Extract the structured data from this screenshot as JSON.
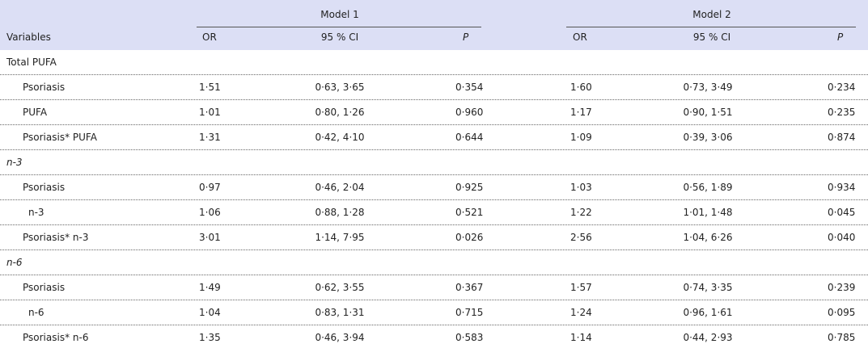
{
  "header": {
    "variables": "Variables",
    "model1": "Model 1",
    "model2": "Model 2",
    "columns": [
      "OR",
      "95 % CI",
      "P",
      "OR",
      "95 % CI",
      "P"
    ]
  },
  "sections": [
    {
      "title": "Total PUFA",
      "rows": [
        {
          "label": "Psoriasis",
          "values": [
            "1·51",
            "0·63, 3·65",
            "0·354",
            "1·60",
            "0·73, 3·49",
            "0·234"
          ]
        },
        {
          "label": "PUFA",
          "values": [
            "1·01",
            "0·80, 1·26",
            "0·960",
            "1·17",
            "0·90, 1·51",
            "0·235"
          ]
        },
        {
          "label": "Psoriasis* PUFA",
          "values": [
            "1·31",
            "0·42, 4·10",
            "0·644",
            "1·09",
            "0·39, 3·06",
            "0·874"
          ]
        }
      ]
    },
    {
      "title": "n-3",
      "rows": [
        {
          "label": "Psoriasis",
          "values": [
            "0·97",
            "0·46, 2·04",
            "0·925",
            "1·03",
            "0·56, 1·89",
            "0·934"
          ]
        },
        {
          "label": "n-3",
          "values": [
            "1·06",
            "0·88, 1·28",
            "0·521",
            "1·22",
            "1·01, 1·48",
            "0·045"
          ]
        },
        {
          "label": "Psoriasis* n-3",
          "values": [
            "3·01",
            "1·14, 7·95",
            "0·026",
            "2·56",
            "1·04, 6·26",
            "0·040"
          ]
        }
      ]
    },
    {
      "title": "n-6",
      "rows": [
        {
          "label": "Psoriasis",
          "values": [
            "1·49",
            "0·62, 3·55",
            "0·367",
            "1·57",
            "0·74, 3·35",
            "0·239"
          ]
        },
        {
          "label": "n-6",
          "values": [
            "1·04",
            "0·83, 1·31",
            "0·715",
            "1·24",
            "0·96, 1·61",
            "0·095"
          ]
        },
        {
          "label": "Psoriasis* n-6",
          "values": [
            "1·35",
            "0·46, 3·94",
            "0·583",
            "1·14",
            "0·44, 2·93",
            "0·785"
          ]
        }
      ]
    }
  ]
}
